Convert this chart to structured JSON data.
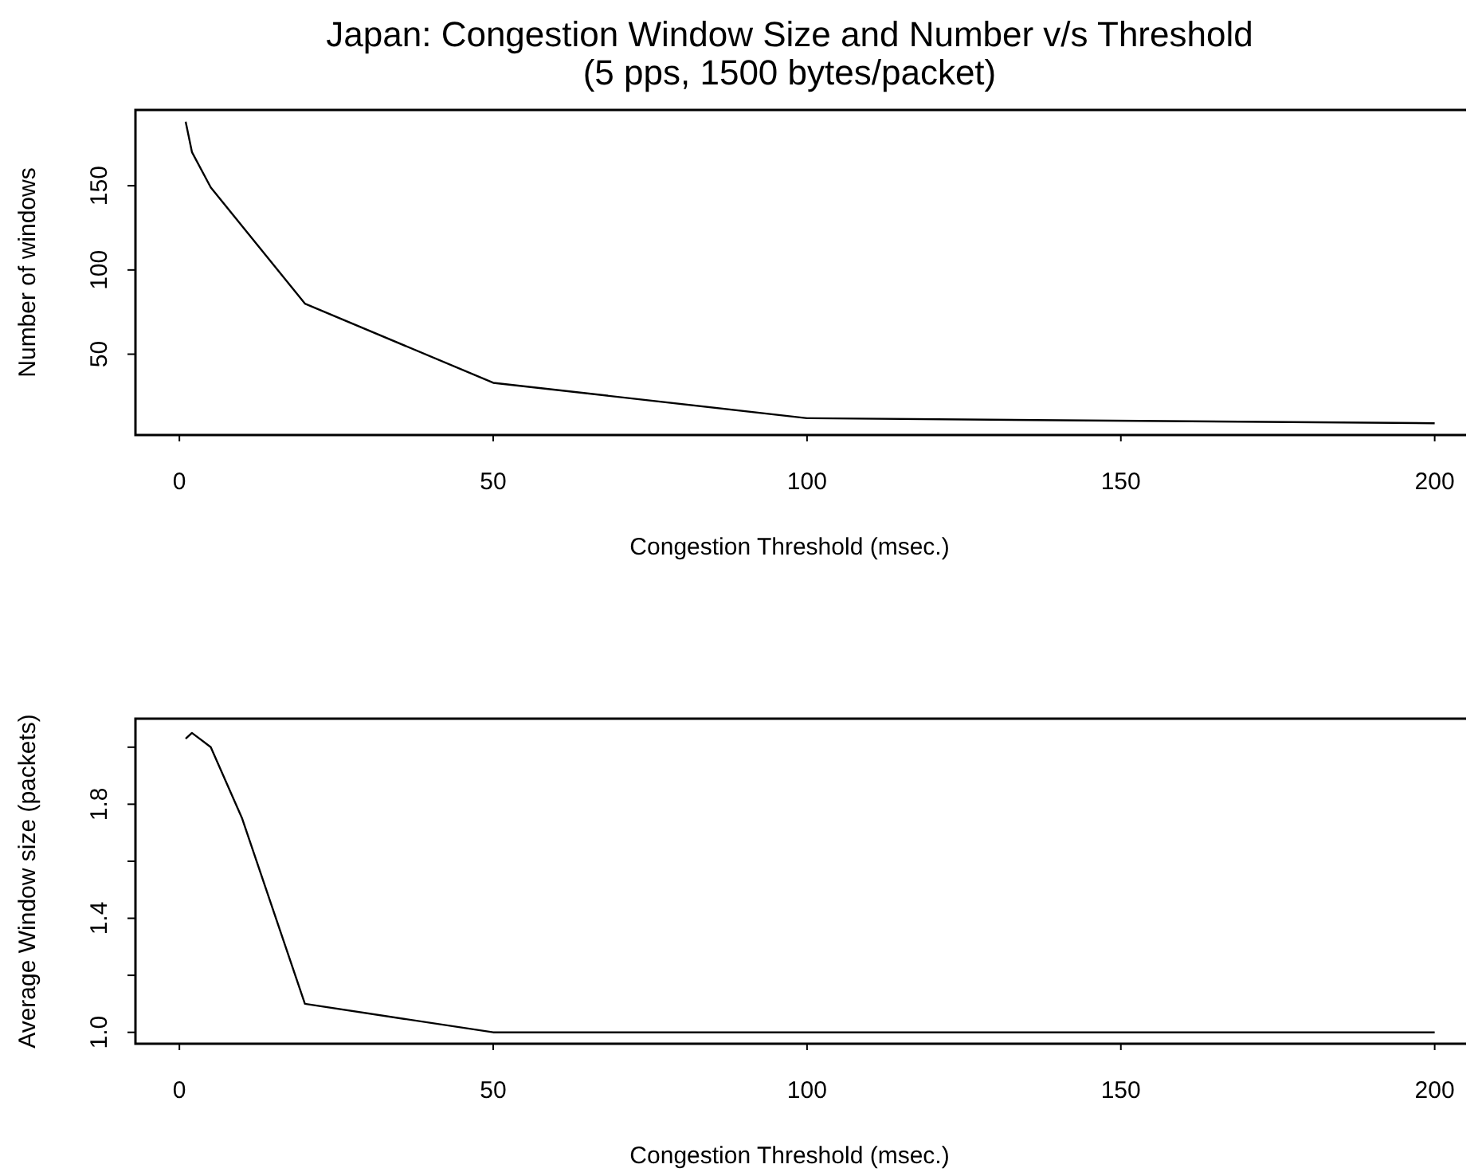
{
  "chart_data": [
    {
      "type": "line",
      "title": "Japan: Congestion Window Size and Number v/s Threshold",
      "subtitle": "(5 pps, 1500 bytes/packet)",
      "xlabel": "Congestion Threshold (msec.)",
      "ylabel": "Number of windows",
      "x": [
        1,
        2,
        5,
        20,
        50,
        100,
        200
      ],
      "series": [
        {
          "color": "#000000",
          "values": [
            188,
            170,
            149,
            80,
            33,
            12,
            9
          ]
        }
      ],
      "xlim": [
        -7,
        205
      ],
      "xticks": [
        0,
        50,
        100,
        150,
        200
      ],
      "ylim": [
        2,
        195
      ],
      "yticks": [
        50,
        100,
        150
      ],
      "grid": false
    },
    {
      "type": "line",
      "xlabel": "Congestion Threshold (msec.)",
      "ylabel": "Average Window size (packets)",
      "x": [
        1,
        2,
        5,
        10,
        20,
        50,
        100,
        200
      ],
      "series": [
        {
          "color": "#000000",
          "values": [
            2.03,
            2.05,
            2.0,
            1.75,
            1.1,
            1.0,
            1.0,
            1.0
          ]
        }
      ],
      "xlim": [
        -7,
        205
      ],
      "xticks": [
        0,
        50,
        100,
        150,
        200
      ],
      "ylim": [
        0.96,
        2.1
      ],
      "yticks": [
        {
          "value": 1,
          "label": "1.0"
        },
        {
          "value": 1.2,
          "label": null
        },
        {
          "value": 1.4,
          "label": "1.4"
        },
        {
          "value": 1.6,
          "label": null
        },
        {
          "value": 1.8,
          "label": "1.8"
        },
        {
          "value": 2,
          "label": null
        }
      ],
      "grid": false
    }
  ]
}
